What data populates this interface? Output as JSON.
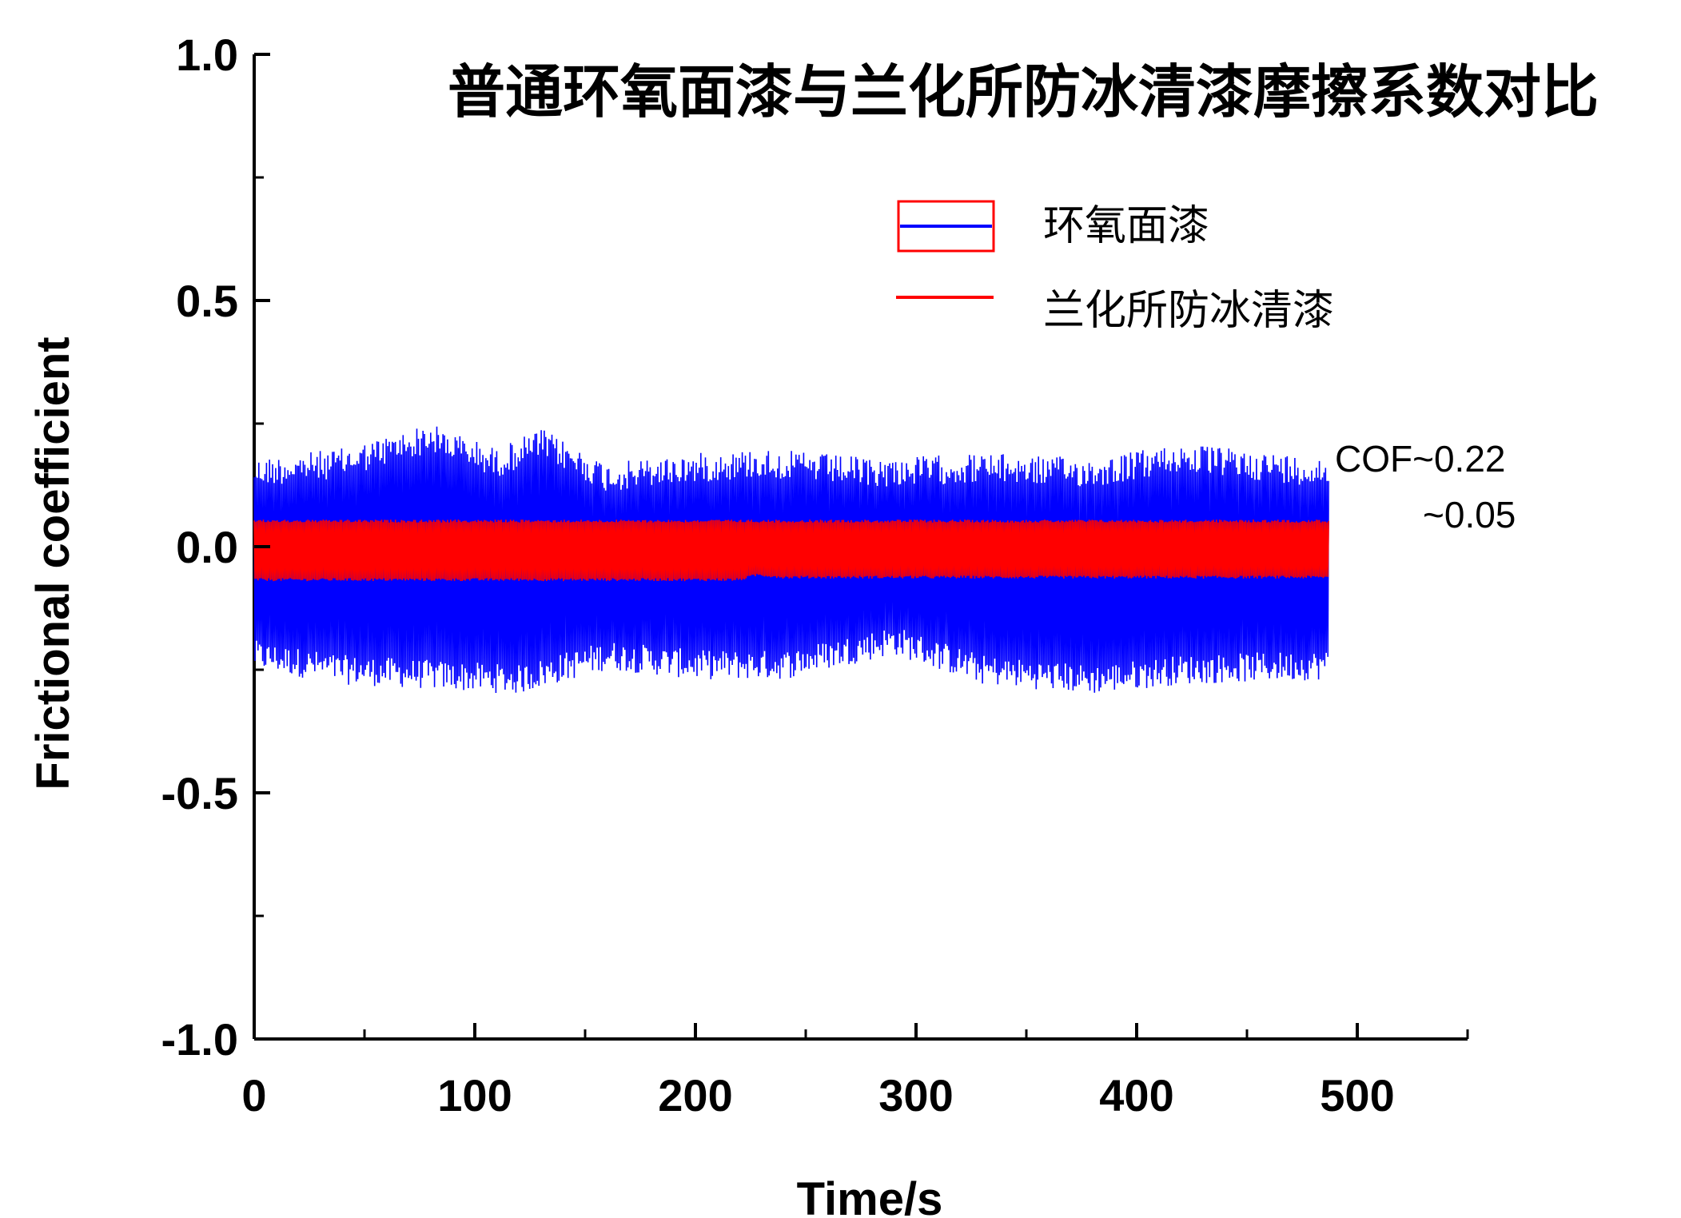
{
  "chart_data": {
    "type": "line",
    "title": "普通环氧面漆与兰化所防冰清漆摩擦系数对比",
    "xlabel": "Time/s",
    "ylabel": "Frictional coefficient",
    "xlim": [
      0,
      550
    ],
    "ylim": [
      -1.0,
      1.0
    ],
    "xticks": [
      "0",
      "100",
      "200",
      "300",
      "400",
      "500"
    ],
    "yticks": [
      "1.0",
      "0.5",
      "0.0",
      "-0.5",
      "-1.0"
    ],
    "legend_position": "top-right",
    "series": [
      {
        "name": "环氧面漆",
        "color": "#0000ff",
        "x_start": 0,
        "x_end": 487,
        "amplitude": 0.22,
        "upper_envelope": [
          [
            0,
            0.18
          ],
          [
            40,
            0.2
          ],
          [
            80,
            0.25
          ],
          [
            110,
            0.2
          ],
          [
            130,
            0.24
          ],
          [
            160,
            0.17
          ],
          [
            200,
            0.19
          ],
          [
            230,
            0.2
          ],
          [
            280,
            0.18
          ],
          [
            330,
            0.19
          ],
          [
            380,
            0.18
          ],
          [
            420,
            0.21
          ],
          [
            487,
            0.18
          ]
        ],
        "lower_envelope": [
          [
            0,
            -0.25
          ],
          [
            40,
            -0.28
          ],
          [
            80,
            -0.29
          ],
          [
            120,
            -0.3
          ],
          [
            160,
            -0.25
          ],
          [
            200,
            -0.27
          ],
          [
            240,
            -0.27
          ],
          [
            290,
            -0.22
          ],
          [
            330,
            -0.28
          ],
          [
            380,
            -0.3
          ],
          [
            420,
            -0.28
          ],
          [
            487,
            -0.27
          ]
        ]
      },
      {
        "name": "兰化所防冰清漆",
        "color": "#ff0000",
        "x_start": 0,
        "x_end": 487,
        "amplitude": 0.05,
        "upper_envelope": [
          [
            0,
            0.055
          ],
          [
            487,
            0.055
          ]
        ],
        "lower_envelope": [
          [
            0,
            -0.07
          ],
          [
            220,
            -0.07
          ],
          [
            228,
            -0.06
          ],
          [
            240,
            -0.065
          ],
          [
            487,
            -0.065
          ]
        ]
      }
    ],
    "annotations": [
      "COF~0.22",
      "~0.05"
    ]
  }
}
